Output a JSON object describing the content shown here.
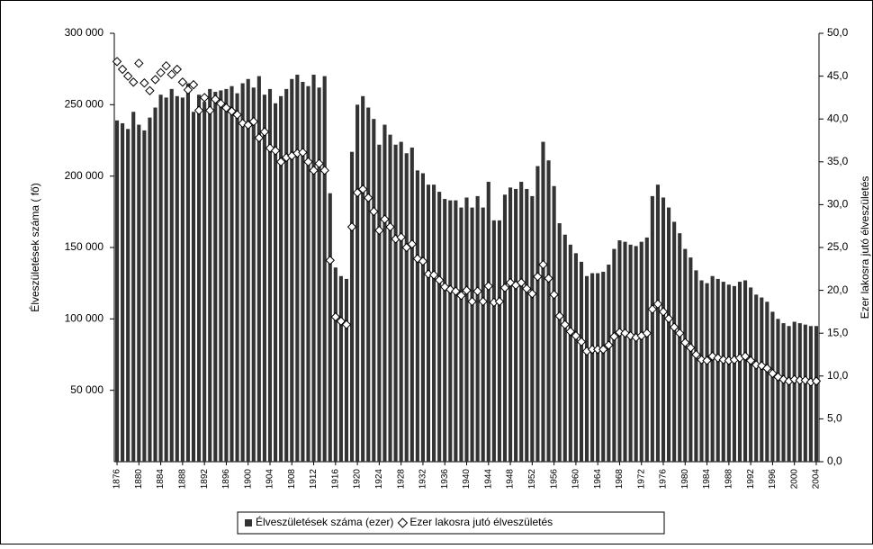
{
  "chart_data": {
    "type": "bar",
    "categories": [
      "1876",
      null,
      null,
      null,
      "1880",
      null,
      null,
      null,
      "1884",
      null,
      null,
      null,
      "1888",
      null,
      null,
      null,
      "1892",
      null,
      null,
      null,
      "1896",
      null,
      null,
      null,
      "1900",
      null,
      null,
      null,
      "1904",
      null,
      null,
      null,
      "1908",
      null,
      null,
      null,
      "1912",
      null,
      null,
      null,
      "1916",
      null,
      null,
      null,
      "1920",
      null,
      null,
      null,
      "1924",
      null,
      null,
      null,
      "1928",
      null,
      null,
      null,
      "1932",
      null,
      null,
      null,
      "1936",
      null,
      null,
      null,
      "1940",
      null,
      null,
      null,
      "1944",
      null,
      null,
      null,
      "1948",
      null,
      null,
      null,
      "1952",
      null,
      null,
      null,
      "1956",
      null,
      null,
      null,
      "1960",
      null,
      null,
      null,
      "1964",
      null,
      null,
      null,
      "1968",
      null,
      null,
      null,
      "1972",
      null,
      null,
      null,
      "1976",
      null,
      null,
      null,
      "1980",
      null,
      null,
      null,
      "1984",
      null,
      null,
      null,
      "1988",
      null,
      null,
      null,
      "1992",
      null,
      null,
      null,
      "1996",
      null,
      null,
      null,
      "2000",
      null,
      null,
      null,
      "2004"
    ],
    "series": [
      {
        "name": "Élveszületések száma (ezer)",
        "color": "#333333",
        "marker": "bar",
        "axis": "y",
        "values": [
          239000,
          237000,
          233000,
          245000,
          236000,
          232000,
          241000,
          248000,
          257000,
          255000,
          261000,
          256000,
          255000,
          265000,
          245000,
          257000,
          252000,
          261000,
          259000,
          260000,
          261000,
          263000,
          258000,
          265000,
          268000,
          262000,
          270000,
          257000,
          261000,
          251000,
          256000,
          261000,
          268000,
          271000,
          266000,
          263000,
          271000,
          262000,
          270000,
          188000,
          136000,
          130000,
          128000,
          217000,
          250000,
          256000,
          248000,
          240000,
          222000,
          236000,
          229000,
          222000,
          224000,
          216000,
          220000,
          204000,
          202000,
          194000,
          194000,
          189000,
          184000,
          183000,
          183000,
          178000,
          185000,
          178000,
          186000,
          178000,
          196000,
          169000,
          169000,
          187000,
          192000,
          191000,
          196000,
          191000,
          186000,
          207000,
          224000,
          211000,
          193000,
          167000,
          159000,
          152000,
          146000,
          140000,
          130000,
          132000,
          132000,
          133000,
          138000,
          149000,
          155000,
          154000,
          152000,
          151000,
          154000,
          157000,
          186000,
          194000,
          185000,
          178000,
          168000,
          160000,
          149000,
          143000,
          134000,
          127000,
          125000,
          130000,
          128000,
          126000,
          124000,
          123000,
          126000,
          127000,
          122000,
          117000,
          115000,
          112000,
          105000,
          100000,
          97000,
          95000,
          98000,
          97000,
          96000,
          95000,
          95000
        ]
      },
      {
        "name": "Ezer lakosra jutó élveszületés",
        "color": "#ffffff",
        "marker": "diamond",
        "axis": "y2",
        "values": [
          46.7,
          45.8,
          45.0,
          44.3,
          46.5,
          44.2,
          43.3,
          44.6,
          45.4,
          46.2,
          45.2,
          45.8,
          44.3,
          43.4,
          44.0,
          41.0,
          42.5,
          41.0,
          42.3,
          41.8,
          41.3,
          40.9,
          40.5,
          39.5,
          39.3,
          39.7,
          37.8,
          38.5,
          36.6,
          36.3,
          35.0,
          35.5,
          35.7,
          36.0,
          36.1,
          35.0,
          34.0,
          34.8,
          34.0,
          23.5,
          16.9,
          16.4,
          16.0,
          27.4,
          31.4,
          31.8,
          30.8,
          29.2,
          27.0,
          28.3,
          27.4,
          26.0,
          26.2,
          25.0,
          25.4,
          23.7,
          23.4,
          21.9,
          21.8,
          21.2,
          20.4,
          20.1,
          19.9,
          19.4,
          20.0,
          18.7,
          19.9,
          18.7,
          20.5,
          18.6,
          18.7,
          20.3,
          20.9,
          20.6,
          20.9,
          20.2,
          19.6,
          21.6,
          23.0,
          21.4,
          19.5,
          17.0,
          16.0,
          15.2,
          14.7,
          14.0,
          12.9,
          13.1,
          13.1,
          13.1,
          13.6,
          14.6,
          15.1,
          15.0,
          14.7,
          14.5,
          14.7,
          15.0,
          17.8,
          18.4,
          17.5,
          16.7,
          15.7,
          15.0,
          13.9,
          13.3,
          12.5,
          11.9,
          11.8,
          12.3,
          12.1,
          11.9,
          11.8,
          11.9,
          12.1,
          12.3,
          11.8,
          11.3,
          11.2,
          10.9,
          10.3,
          9.9,
          9.6,
          9.4,
          9.6,
          9.5,
          9.5,
          9.3,
          9.4
        ]
      }
    ],
    "y_label": "Élveszületések száma ( fő)",
    "y2_label": "Ezer lakosra jutó élveszületés",
    "ylim": [
      0,
      300000
    ],
    "yticks": [
      {
        "value": 50000,
        "label": "50 000"
      },
      {
        "value": 100000,
        "label": "100 000"
      },
      {
        "value": 150000,
        "label": "150 000"
      },
      {
        "value": 200000,
        "label": "200 000"
      },
      {
        "value": 250000,
        "label": "250 000"
      },
      {
        "value": 300000,
        "label": "300 000"
      }
    ],
    "y2lim": [
      0,
      50
    ],
    "y2ticks": [
      {
        "value": 0,
        "label": "0,0"
      },
      {
        "value": 5,
        "label": "5,0"
      },
      {
        "value": 10,
        "label": "10,0"
      },
      {
        "value": 15,
        "label": "15,0"
      },
      {
        "value": 20,
        "label": "20,0"
      },
      {
        "value": 25,
        "label": "25,0"
      },
      {
        "value": 30,
        "label": "30,0"
      },
      {
        "value": 35,
        "label": "35,0"
      },
      {
        "value": 40,
        "label": "40,0"
      },
      {
        "value": 45,
        "label": "45,0"
      },
      {
        "value": 50,
        "label": "50,0"
      }
    ],
    "legend": "bottom"
  }
}
